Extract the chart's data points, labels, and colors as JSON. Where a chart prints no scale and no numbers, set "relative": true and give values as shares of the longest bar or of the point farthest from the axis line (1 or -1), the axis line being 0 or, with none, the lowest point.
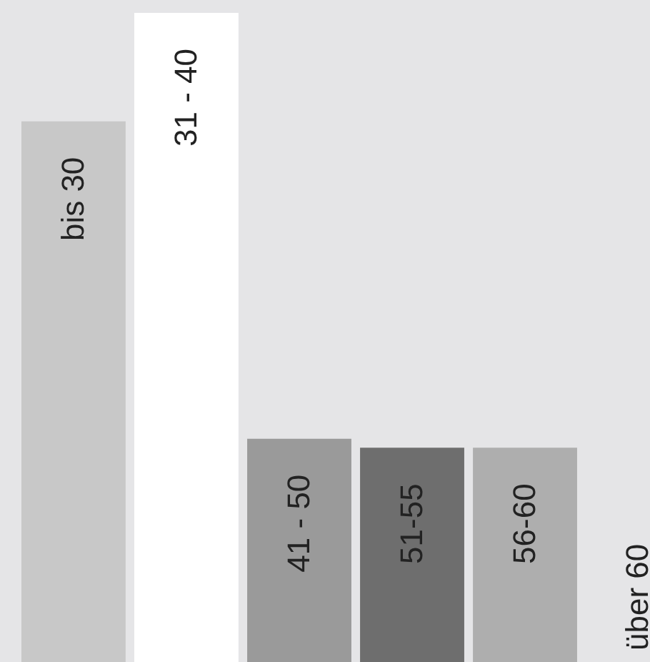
{
  "chart_data": {
    "type": "bar",
    "relative": true,
    "categories": [
      "bis 30",
      "31 - 40",
      "41 - 50",
      "51-55",
      "56-60",
      "über 60"
    ],
    "values": [
      0.833,
      1,
      0.344,
      0.33,
      0.33,
      0
    ],
    "colors": [
      "#c8c8c8",
      "#ffffff",
      "#9a9a9a",
      "#6e6e6e",
      "#aeaeae",
      "#e5e5e7"
    ],
    "tick_labels": false
  }
}
